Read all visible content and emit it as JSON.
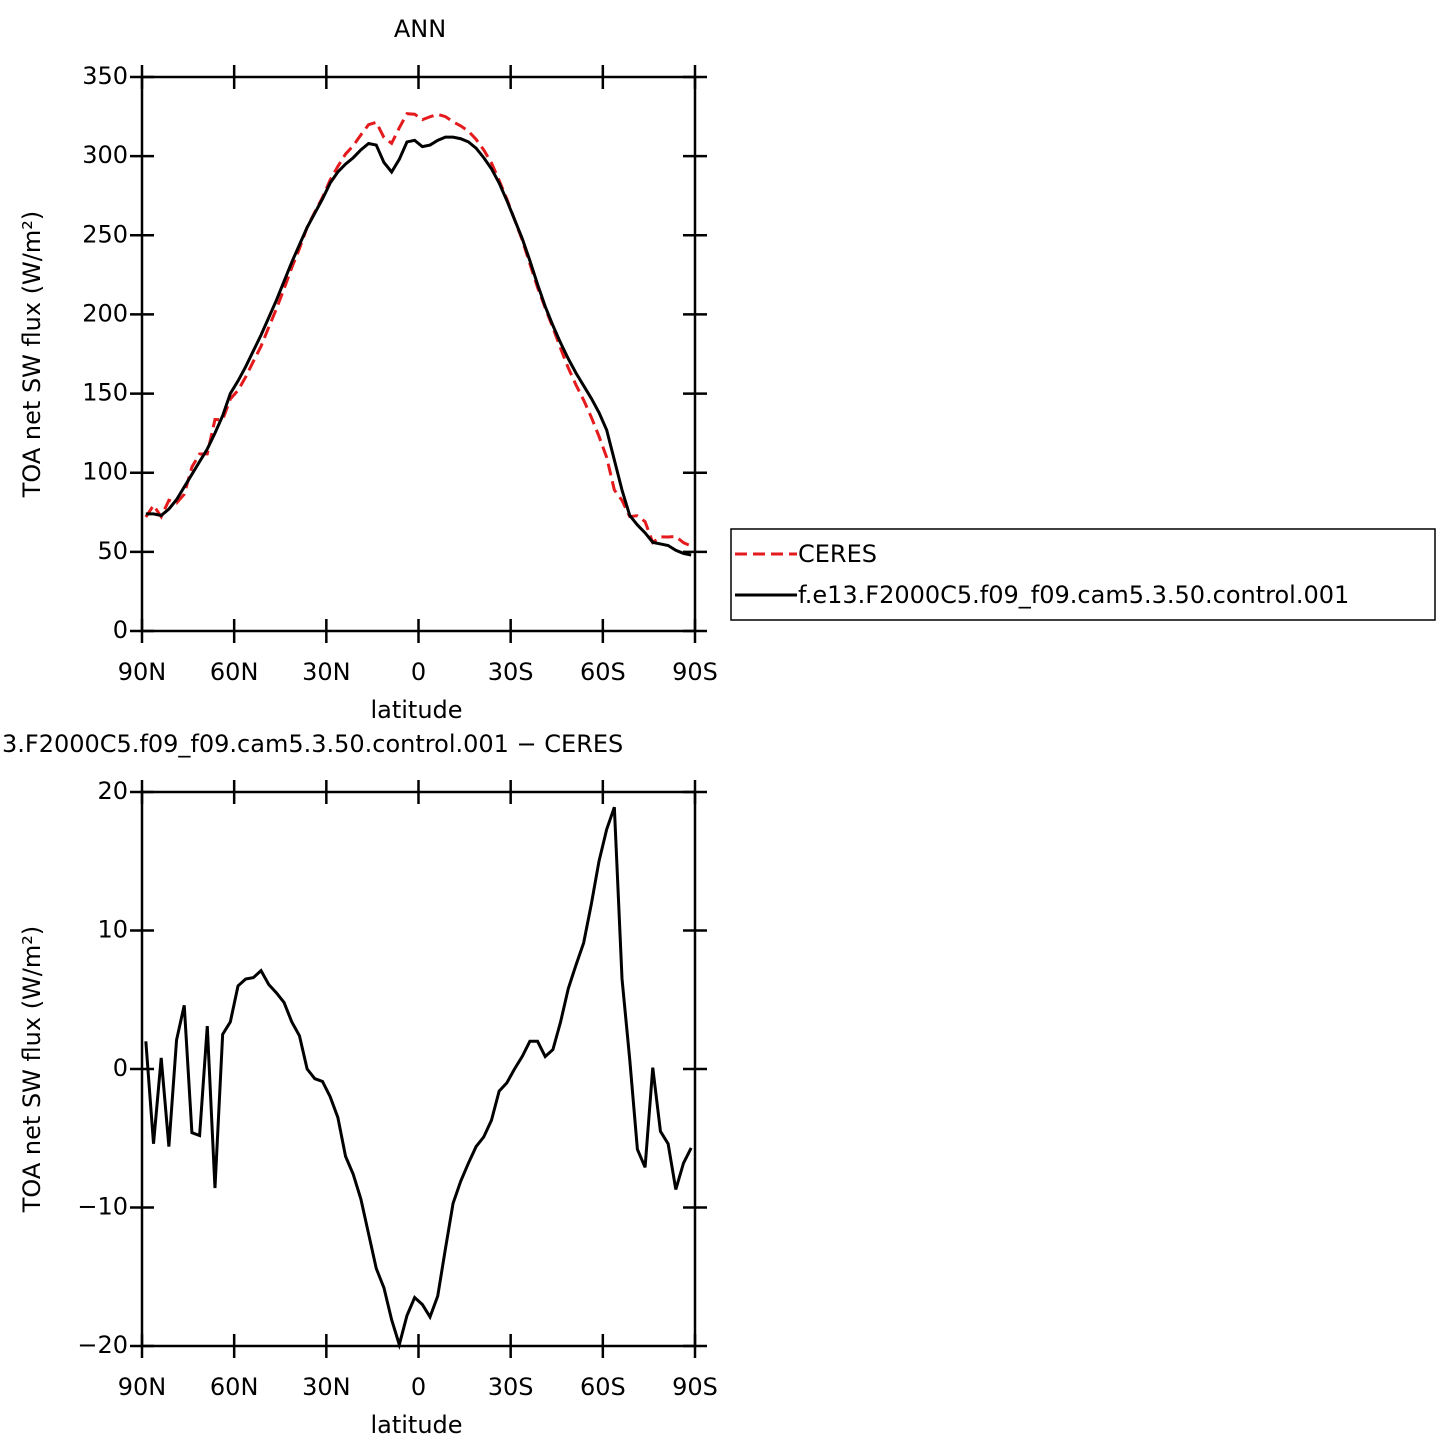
{
  "chart_data": [
    {
      "type": "line",
      "title": "ANN",
      "xlabel": "latitude",
      "ylabel": "TOA net SW flux (W/m²)",
      "x": [
        88.75,
        86.25,
        83.75,
        81.25,
        78.75,
        76.25,
        73.75,
        71.25,
        68.75,
        66.25,
        63.75,
        61.25,
        58.75,
        56.25,
        53.75,
        51.25,
        48.75,
        46.25,
        43.75,
        41.25,
        38.75,
        36.25,
        33.75,
        31.25,
        28.75,
        26.25,
        23.75,
        21.25,
        18.75,
        16.25,
        13.75,
        11.25,
        8.75,
        6.25,
        3.75,
        1.25,
        -1.25,
        -3.75,
        -6.25,
        -8.75,
        -11.25,
        -13.75,
        -16.25,
        -18.75,
        -21.25,
        -23.75,
        -26.25,
        -28.75,
        -31.25,
        -33.75,
        -36.25,
        -38.75,
        -41.25,
        -43.75,
        -46.25,
        -48.75,
        -51.25,
        -53.75,
        -56.25,
        -58.75,
        -61.25,
        -63.75,
        -66.25,
        -68.75,
        -71.25,
        -73.75,
        -76.25,
        -78.75,
        -81.25,
        -83.75,
        -86.25,
        -88.75
      ],
      "series": [
        {
          "name": "CERES",
          "color": "#e41a1c",
          "linestyle": "dashed",
          "values": [
            72,
            79.4,
            72.2,
            82.6,
            80.9,
            86.4,
            103.6,
            111.8,
            111.9,
            133.6,
            133.5,
            146.6,
            152,
            160.5,
            170.4,
            179.9,
            191.9,
            203.5,
            216.2,
            229.6,
            241.6,
            255,
            264.7,
            273.9,
            285,
            293.5,
            301.3,
            306.6,
            313.4,
            319.9,
            321.4,
            311.8,
            308.1,
            317.9,
            326.8,
            326.5,
            323,
            324.9,
            326.4,
            325,
            321.7,
            319.1,
            315.8,
            310.6,
            303.9,
            295.7,
            284.6,
            273,
            260,
            247.1,
            232,
            217,
            204.1,
            191.6,
            178.6,
            166.2,
            155.5,
            145.9,
            135.1,
            123,
            109.7,
            89.1,
            82.5,
            72.3,
            72.8,
            69.1,
            55.9,
            59.5,
            59.4,
            59.7,
            55.8,
            53.7
          ]
        },
        {
          "name": "f.e13.F2000C5.f09_f09.cam5.3.50.control.001",
          "color": "#000000",
          "linestyle": "solid",
          "values": [
            74,
            74,
            73,
            77,
            83,
            91,
            99,
            107,
            115,
            125,
            136,
            150,
            158,
            167,
            177,
            187,
            198,
            209,
            221,
            233,
            244,
            255,
            264,
            273,
            283,
            290,
            295,
            299,
            304,
            308,
            307,
            296,
            290,
            298,
            309,
            310,
            306,
            307,
            310,
            312,
            312,
            311,
            309,
            305,
            299,
            292,
            283,
            272,
            260,
            248,
            234,
            219,
            205,
            193,
            182,
            172,
            163,
            155,
            147,
            138,
            127,
            108,
            89,
            73,
            67,
            62,
            56,
            55,
            54,
            51,
            49,
            48
          ]
        }
      ],
      "xlim": [
        90,
        -90
      ],
      "xticks": [
        {
          "value": 90,
          "label": "90N"
        },
        {
          "value": 60,
          "label": "60N"
        },
        {
          "value": 30,
          "label": "30N"
        },
        0,
        {
          "value": -30,
          "label": "30S"
        },
        {
          "value": -60,
          "label": "60S"
        },
        {
          "value": -90,
          "label": "90S"
        }
      ],
      "ylim": [
        0,
        350
      ],
      "yticks": [
        0,
        50,
        100,
        150,
        200,
        250,
        300,
        350
      ],
      "legend": "right"
    },
    {
      "type": "line",
      "title": "3.F2000C5.f09_f09.cam5.3.50.control.001 − CERES",
      "xlabel": "latitude",
      "ylabel": "TOA net SW flux (W/m²)",
      "x": [
        88.75,
        86.25,
        83.75,
        81.25,
        78.75,
        76.25,
        73.75,
        71.25,
        68.75,
        66.25,
        63.75,
        61.25,
        58.75,
        56.25,
        53.75,
        51.25,
        48.75,
        46.25,
        43.75,
        41.25,
        38.75,
        36.25,
        33.75,
        31.25,
        28.75,
        26.25,
        23.75,
        21.25,
        18.75,
        16.25,
        13.75,
        11.25,
        8.75,
        6.25,
        3.75,
        1.25,
        -1.25,
        -3.75,
        -6.25,
        -8.75,
        -11.25,
        -13.75,
        -16.25,
        -18.75,
        -21.25,
        -23.75,
        -26.25,
        -28.75,
        -31.25,
        -33.75,
        -36.25,
        -38.75,
        -41.25,
        -43.75,
        -46.25,
        -48.75,
        -51.25,
        -53.75,
        -56.25,
        -58.75,
        -61.25,
        -63.75,
        -66.25,
        -68.75,
        -71.25,
        -73.75,
        -76.25,
        -78.75,
        -81.25,
        -83.75,
        -86.25,
        -88.75
      ],
      "series": [
        {
          "color": "#000000",
          "linestyle": "solid",
          "values": [
            2,
            -5.4,
            0.8,
            -5.6,
            2.1,
            4.6,
            -4.6,
            -4.8,
            3.1,
            -8.6,
            2.5,
            3.4,
            6,
            6.5,
            6.6,
            7.1,
            6.1,
            5.5,
            4.8,
            3.4,
            2.4,
            0,
            -0.7,
            -0.9,
            -2,
            -3.5,
            -6.3,
            -7.6,
            -9.4,
            -11.9,
            -14.4,
            -15.8,
            -18.1,
            -19.9,
            -17.8,
            -16.5,
            -17,
            -17.9,
            -16.4,
            -13,
            -9.7,
            -8.1,
            -6.8,
            -5.6,
            -4.9,
            -3.7,
            -1.6,
            -1,
            0,
            0.9,
            2,
            2,
            0.9,
            1.4,
            3.4,
            5.8,
            7.5,
            9.1,
            11.9,
            15,
            17.3,
            18.9,
            6.5,
            0.7,
            -5.8,
            -7.1,
            0.1,
            -4.5,
            -5.4,
            -8.7,
            -6.8,
            -5.7
          ]
        }
      ],
      "xlim": [
        90,
        -90
      ],
      "xticks": [
        {
          "value": 90,
          "label": "90N"
        },
        {
          "value": 60,
          "label": "60N"
        },
        {
          "value": 30,
          "label": "30N"
        },
        0,
        {
          "value": -30,
          "label": "30S"
        },
        {
          "value": -60,
          "label": "60S"
        },
        {
          "value": -90,
          "label": "90S"
        }
      ],
      "ylim": [
        -20,
        20
      ],
      "yticks": [
        {
          "value": -20,
          "label": "−20"
        },
        {
          "value": -10,
          "label": "−10"
        },
        0,
        10,
        20
      ]
    }
  ]
}
